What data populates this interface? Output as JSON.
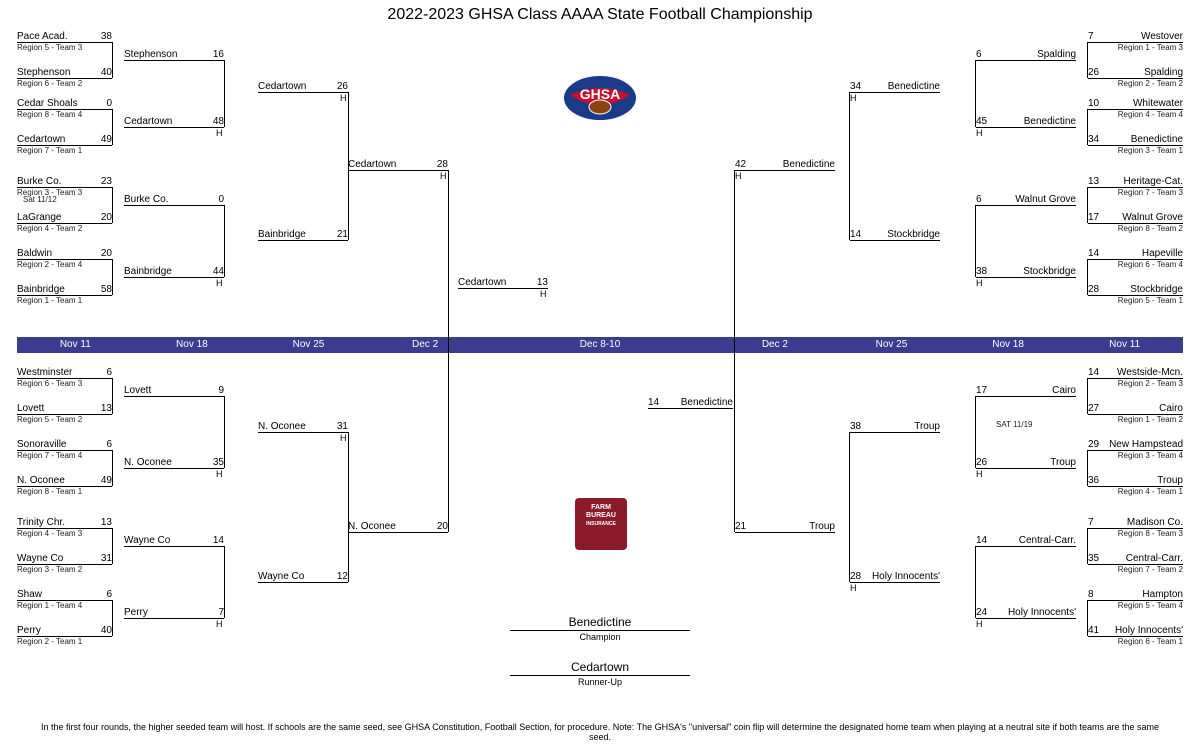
{
  "title": "2022-2023 GHSA Class AAAA State Football Championship",
  "dates": [
    "Nov 11",
    "Nov 18",
    "Nov 25",
    "Dec 2",
    "Dec 8-10",
    "Dec 2",
    "Nov 25",
    "Nov 18",
    "Nov 11"
  ],
  "footnote": "In the first four rounds, the higher seeded team will host. If schools are the same seed, see GHSA Constitution, Football Section, for procedure.   Note: The GHSA's \"universal\" coin flip will determine the designated home team when playing at a neutral site if both teams are the same seed.",
  "champion": {
    "name": "Benedictine",
    "label": "Champion"
  },
  "runnerup": {
    "name": "Cedartown",
    "label": "Runner-Up"
  },
  "sponsor": {
    "l1": "FARM",
    "l2": "BUREAU",
    "l3": "INSURANCE"
  },
  "L": {
    "r1": [
      {
        "t": "Pace Acad.",
        "s": "38",
        "sub": "Region 5 - Team 3"
      },
      {
        "t": "Stephenson",
        "s": "40",
        "sub": "Region 6 - Team 2"
      },
      {
        "t": "Cedar Shoals",
        "s": "0",
        "sub": "Region 8 - Team 4"
      },
      {
        "t": "Cedartown",
        "s": "49",
        "sub": "Region 7 - Team 1"
      },
      {
        "t": "Burke Co.",
        "s": "23",
        "sub": "Region 3 - Team 3"
      },
      {
        "t": "LaGrange",
        "s": "20",
        "sub": "Region 4 - Team 2"
      },
      {
        "t": "Baldwin",
        "s": "20",
        "sub": "Region 2 - Team 4"
      },
      {
        "t": "Bainbridge",
        "s": "58",
        "sub": "Region 1 - Team 1"
      },
      {
        "t": "Westminster",
        "s": "6",
        "sub": "Region 6 - Team 3"
      },
      {
        "t": "Lovett",
        "s": "13",
        "sub": "Region 5 - Team 2"
      },
      {
        "t": "Sonoraville",
        "s": "6",
        "sub": "Region 7 - Team 4"
      },
      {
        "t": "N. Oconee",
        "s": "49",
        "sub": "Region 8 - Team 1"
      },
      {
        "t": "Trinity Chr.",
        "s": "13",
        "sub": "Region 4 - Team 3"
      },
      {
        "t": "Wayne Co",
        "s": "31",
        "sub": "Region 3 - Team 2"
      },
      {
        "t": "Shaw",
        "s": "6",
        "sub": "Region 1 - Team 4"
      },
      {
        "t": "Perry",
        "s": "40",
        "sub": "Region 2 - Team 1"
      }
    ],
    "r1note": "Sat 11/12",
    "r2": [
      {
        "t": "Stephenson",
        "s": "16"
      },
      {
        "t": "Cedartown",
        "s": "48",
        "h": true
      },
      {
        "t": "Burke Co.",
        "s": "0"
      },
      {
        "t": "Bainbridge",
        "s": "44",
        "h": true
      },
      {
        "t": "Lovett",
        "s": "9"
      },
      {
        "t": "N. Oconee",
        "s": "35",
        "h": true
      },
      {
        "t": "Wayne Co",
        "s": "14"
      },
      {
        "t": "Perry",
        "s": "7",
        "h": true
      }
    ],
    "r3": [
      {
        "t": "Cedartown",
        "s": "26",
        "h": true
      },
      {
        "t": "Bainbridge",
        "s": "21"
      },
      {
        "t": "N. Oconee",
        "s": "31",
        "h": true
      },
      {
        "t": "Wayne Co",
        "s": "12"
      }
    ],
    "r4": [
      {
        "t": "Cedartown",
        "s": "28",
        "h": true
      },
      {
        "t": "N. Oconee",
        "s": "20"
      }
    ],
    "r5": {
      "t": "Cedartown",
      "s": "13",
      "h": true
    }
  },
  "R": {
    "r1": [
      {
        "t": "Westover",
        "s": "7",
        "sub": "Region 1 - Team 3"
      },
      {
        "t": "Spalding",
        "s": "26",
        "sub": "Region 2 - Team 2"
      },
      {
        "t": "Whitewater",
        "s": "10",
        "sub": "Region 4 - Team 4"
      },
      {
        "t": "Benedictine",
        "s": "34",
        "sub": "Region 3 - Team 1"
      },
      {
        "t": "Heritage-Cat.",
        "s": "13",
        "sub": "Region 7 - Team 3"
      },
      {
        "t": "Walnut Grove",
        "s": "17",
        "sub": "Region 8 - Team 2"
      },
      {
        "t": "Hapeville",
        "s": "14",
        "sub": "Region 6 - Team 4"
      },
      {
        "t": "Stockbridge",
        "s": "28",
        "sub": "Region 5 - Team 1"
      },
      {
        "t": "Westside-Mcn.",
        "s": "14",
        "sub": "Region 2 - Team 3"
      },
      {
        "t": "Cairo",
        "s": "27",
        "sub": "Region 1 - Team 2"
      },
      {
        "t": "New Hampstead",
        "s": "29",
        "sub": "Region 3 - Team 4"
      },
      {
        "t": "Troup",
        "s": "36",
        "sub": "Region 4 - Team 1"
      },
      {
        "t": "Madison Co.",
        "s": "7",
        "sub": "Region 8 - Team 3"
      },
      {
        "t": "Central-Carr.",
        "s": "35",
        "sub": "Region 7 - Team 2"
      },
      {
        "t": "Hampton",
        "s": "8",
        "sub": "Region 5 - Team 4"
      },
      {
        "t": "Holy Innocents'",
        "s": "41",
        "sub": "Region 6 - Team 1"
      }
    ],
    "r2": [
      {
        "t": "Spalding",
        "s": "6"
      },
      {
        "t": "Benedictine",
        "s": "45",
        "h": true
      },
      {
        "t": "Walnut Grove",
        "s": "6"
      },
      {
        "t": "Stockbridge",
        "s": "38",
        "h": true
      },
      {
        "t": "Cairo",
        "s": "17"
      },
      {
        "t": "Troup",
        "s": "26",
        "h": true
      },
      {
        "t": "Central-Carr.",
        "s": "14"
      },
      {
        "t": "Holy Innocents'",
        "s": "24",
        "h": true
      }
    ],
    "r2note": "SAT 11/19",
    "r3": [
      {
        "t": "Benedictine",
        "s": "34",
        "h": true
      },
      {
        "t": "Stockbridge",
        "s": "14"
      },
      {
        "t": "Troup",
        "s": "38"
      },
      {
        "t": "Holy Innocents'",
        "s": "28",
        "h": true
      }
    ],
    "r4": [
      {
        "t": "Benedictine",
        "s": "42",
        "h": true
      },
      {
        "t": "Troup",
        "s": "21"
      }
    ],
    "r5": {
      "t": "Benedictine",
      "s": "14"
    }
  },
  "style": {
    "col_w_outer": 95,
    "col_w_inner": 100,
    "date_bg": "#3b3b8f"
  }
}
